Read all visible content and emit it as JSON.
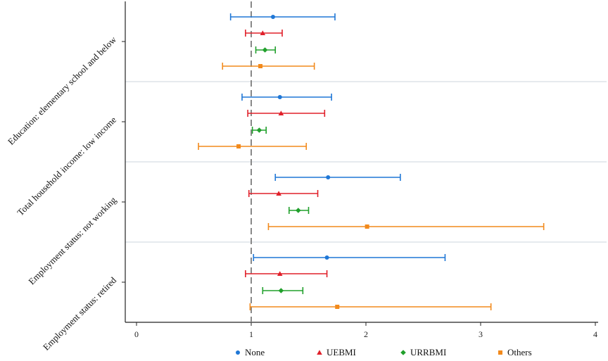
{
  "chart_data": {
    "type": "forest",
    "title": "",
    "xlabel": "",
    "ylabel": "",
    "xlim": [
      -0.1,
      4.05
    ],
    "xticks": [
      0,
      1,
      2,
      3,
      4
    ],
    "xtick_labels": [
      "0",
      "1",
      "2",
      "3",
      "4"
    ],
    "reference_line": 1,
    "grid": false,
    "legend_position": "bottom",
    "categories": [
      "Education: elementary school and below",
      "Total household income: low income",
      "Employment status: not working",
      "Employment status: retired"
    ],
    "series": [
      {
        "name": "None",
        "marker": "circle",
        "color": "#1f77d6",
        "estimates": [
          1.19,
          1.25,
          1.67,
          1.66
        ],
        "lower": [
          0.82,
          0.92,
          1.21,
          1.02
        ],
        "upper": [
          1.73,
          1.7,
          2.3,
          2.69
        ]
      },
      {
        "name": "UEBMI",
        "marker": "triangle",
        "color": "#e0202a",
        "estimates": [
          1.1,
          1.26,
          1.24,
          1.25
        ],
        "lower": [
          0.95,
          0.97,
          0.98,
          0.95
        ],
        "upper": [
          1.27,
          1.64,
          1.58,
          1.66
        ]
      },
      {
        "name": "URRBMI",
        "marker": "diamond",
        "color": "#21a02c",
        "estimates": [
          1.12,
          1.07,
          1.41,
          1.26
        ],
        "lower": [
          1.04,
          1.01,
          1.33,
          1.1
        ],
        "upper": [
          1.21,
          1.13,
          1.5,
          1.45
        ]
      },
      {
        "name": "Others",
        "marker": "square",
        "color": "#f28a1c",
        "estimates": [
          1.08,
          0.89,
          2.01,
          1.75
        ],
        "lower": [
          0.75,
          0.54,
          1.15,
          0.99
        ],
        "upper": [
          1.55,
          1.48,
          3.55,
          3.09
        ]
      }
    ]
  }
}
